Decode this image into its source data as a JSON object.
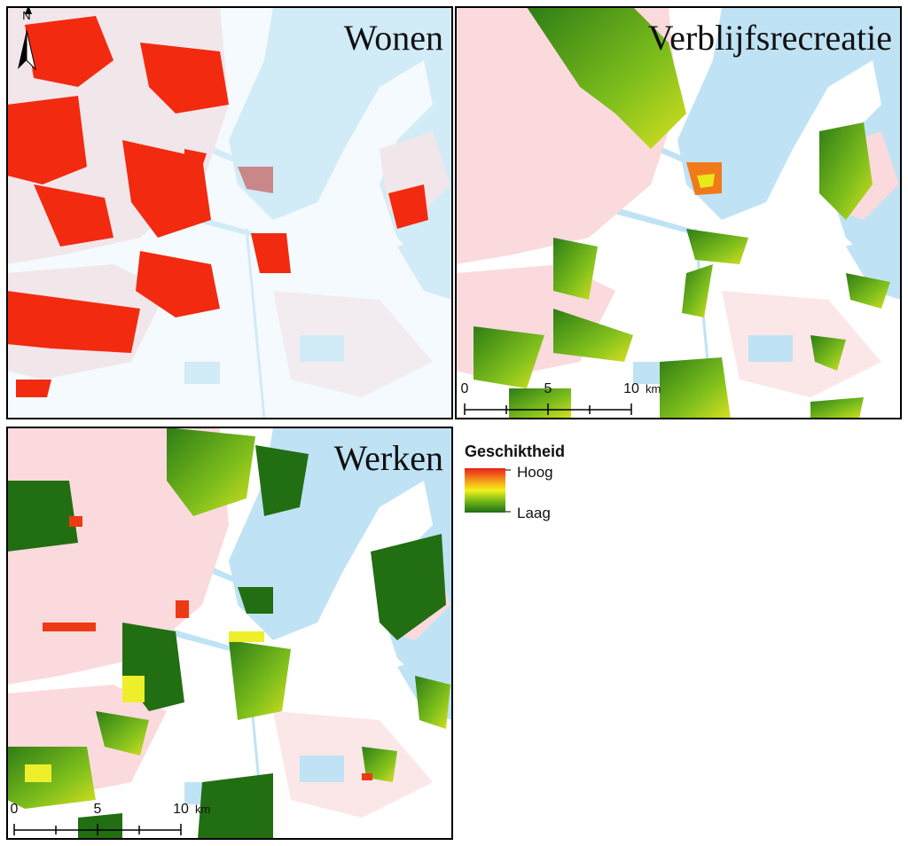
{
  "panels": [
    {
      "title": "Wonen"
    },
    {
      "title": "Verblijfsrecreatie"
    },
    {
      "title": "Werken"
    }
  ],
  "north": "N",
  "scale_bars": [
    {
      "labels": [
        "0",
        "5",
        "10"
      ],
      "unit": "km"
    },
    {
      "labels": [
        "0",
        "5",
        "10"
      ],
      "unit": "km"
    }
  ],
  "legend": {
    "title": "Geschiktheid",
    "high": "Hoog",
    "low": "Laag"
  }
}
